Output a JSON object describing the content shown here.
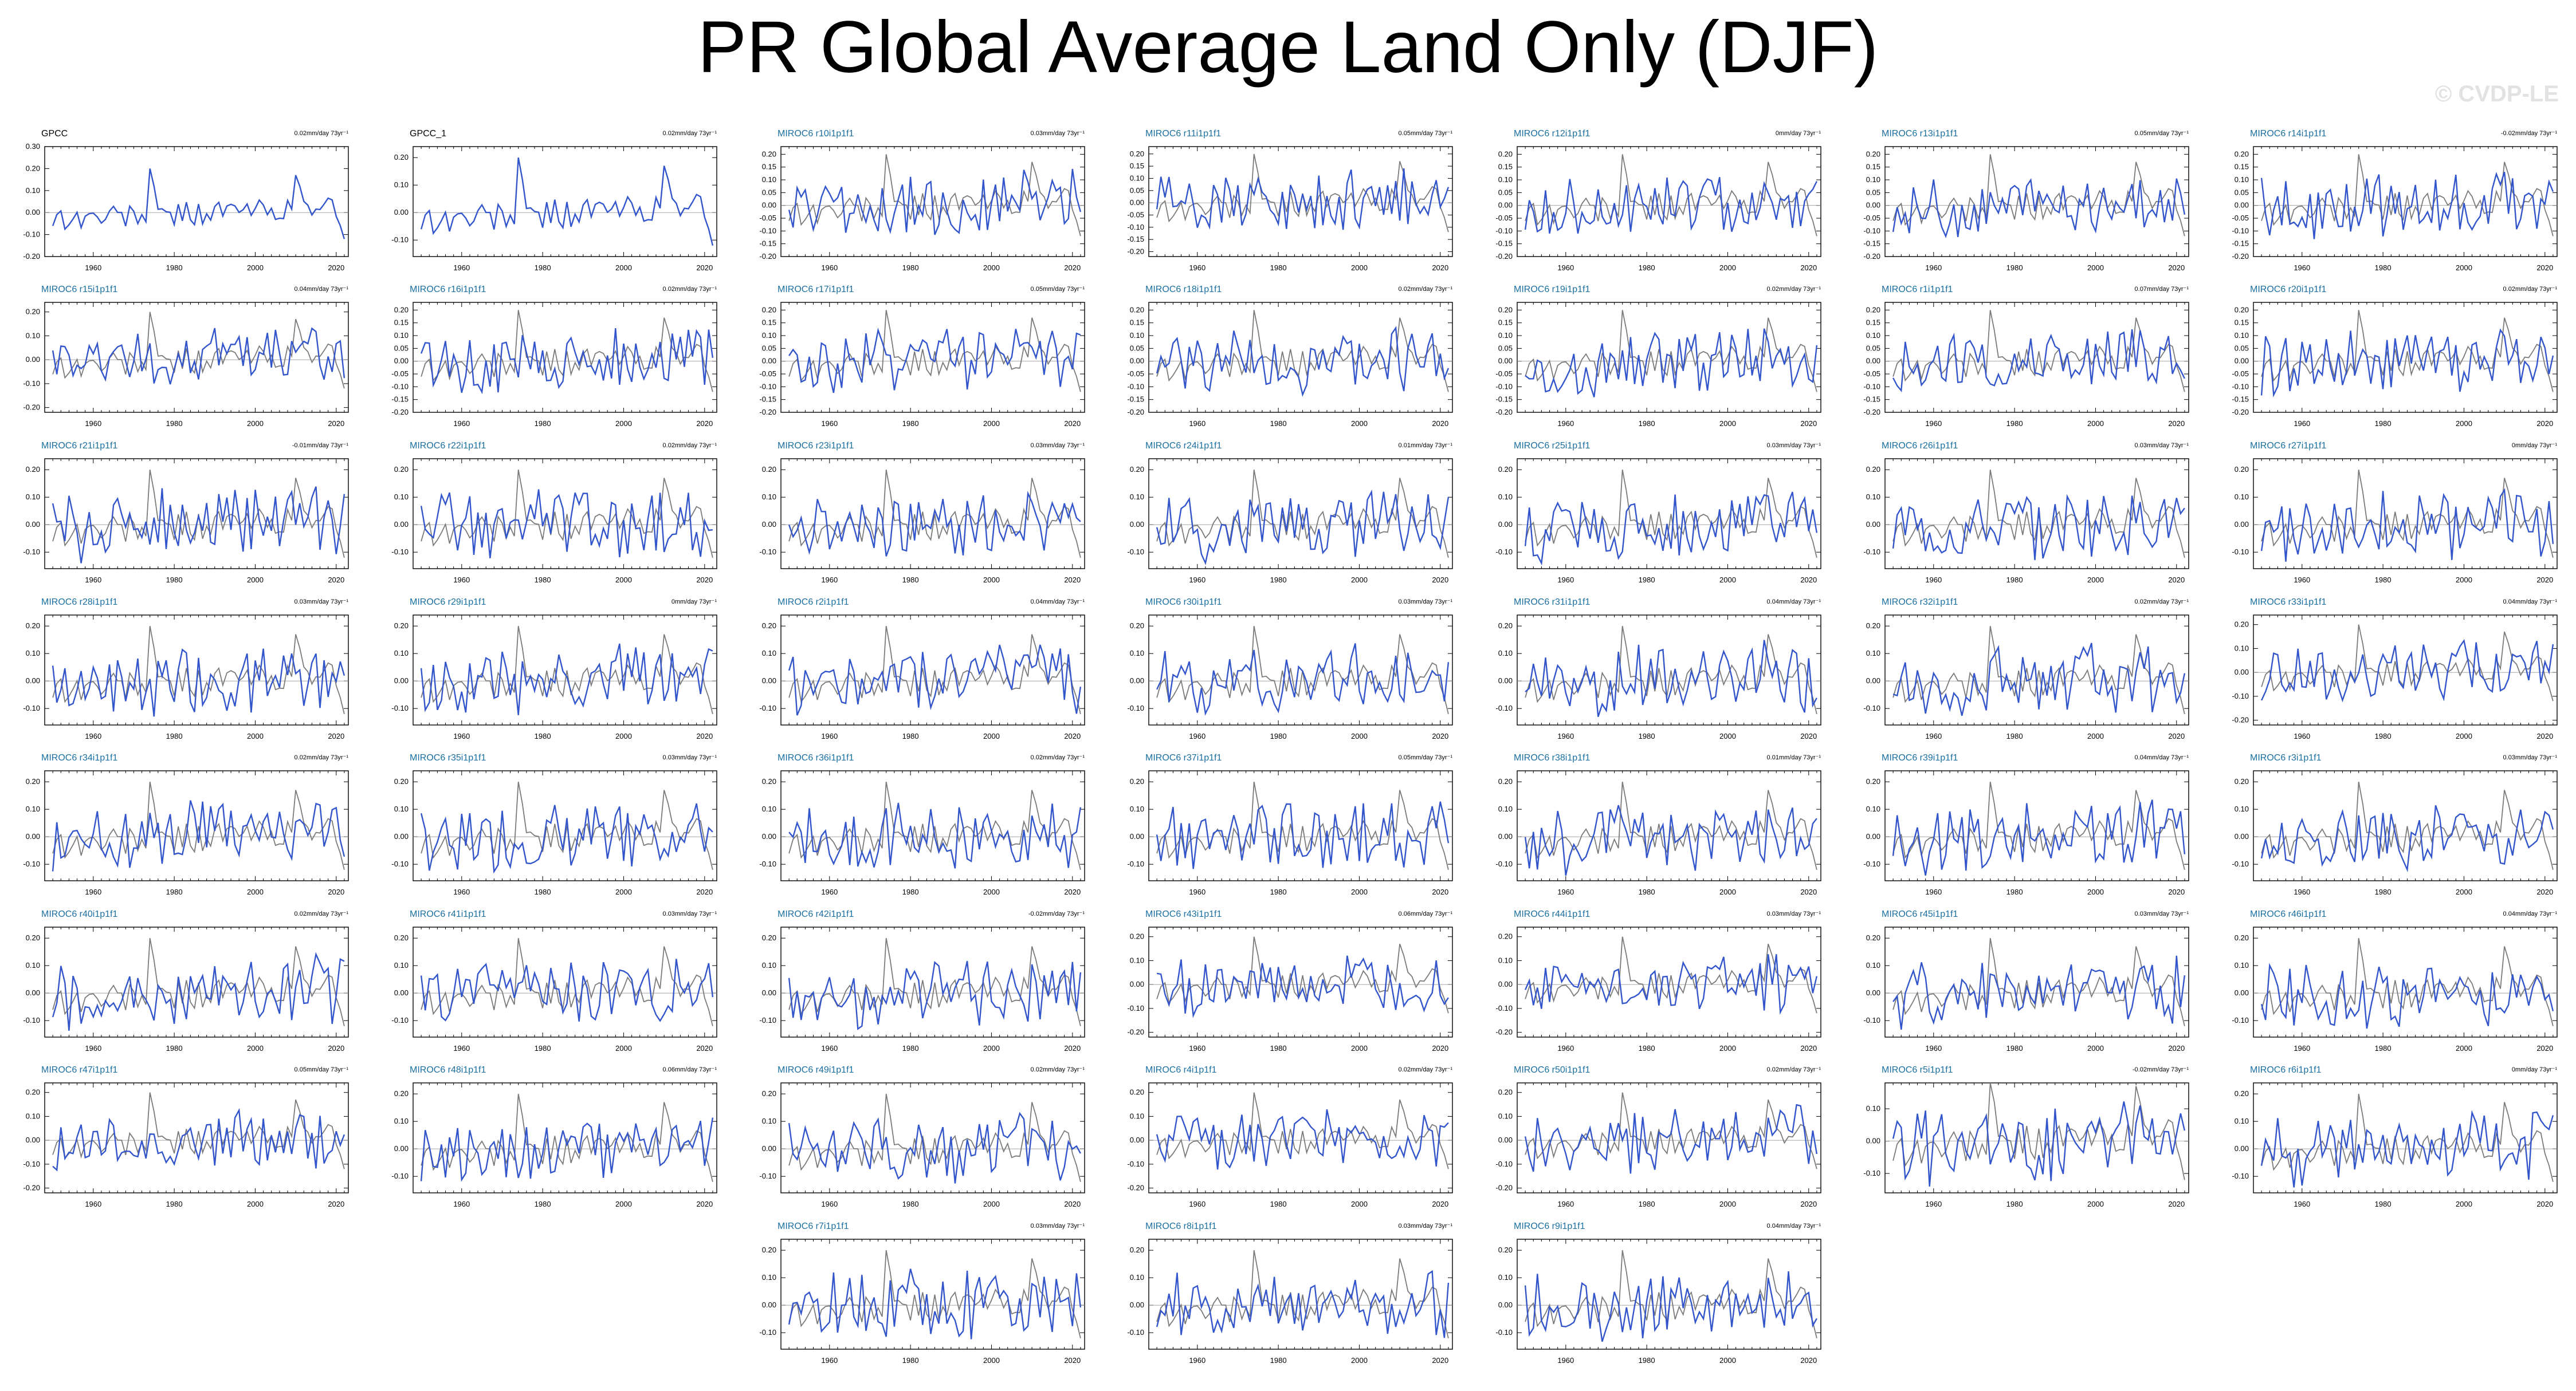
{
  "title": "PR Global Average Land Only (DJF)",
  "watermark": "© CVDP-LE",
  "colors": {
    "model": "#3355cc",
    "obs": "#7a7a7a",
    "obs_label": "#000000",
    "model_label": "#1a6fa0"
  },
  "chart_data": {
    "type": "line",
    "xlim": [
      1948,
      2023
    ],
    "xticks": [
      "1960",
      "1980",
      "2000",
      "2020"
    ],
    "obs_name": "GPCC",
    "panels": [
      {
        "label": "GPCC",
        "trend": "0.02mm/day 73yr⁻¹",
        "yticks": [
          "0.30",
          "0.20",
          "0.10",
          "0.00",
          "-0.10",
          "-0.20"
        ],
        "ylim": [
          -0.2,
          0.3
        ],
        "obs": true,
        "seed": 1
      },
      {
        "label": "GPCC_1",
        "trend": "0.02mm/day 73yr⁻¹",
        "yticks": [
          "0.20",
          "0.10",
          "0.00",
          "-0.10"
        ],
        "ylim": [
          -0.16,
          0.24
        ],
        "obs": true,
        "seed": 2
      },
      {
        "label": "MIROC6 r10i1p1f1",
        "trend": "0.03mm/day 73yr⁻¹",
        "yticks": [
          "0.20",
          "0.15",
          "0.10",
          "0.05",
          "0.00",
          "-0.05",
          "-0.10",
          "-0.15",
          "-0.20"
        ],
        "ylim": [
          -0.2,
          0.23
        ],
        "seed": 3
      },
      {
        "label": "MIROC6 r11i1p1f1",
        "trend": "0.05mm/day 73yr⁻¹",
        "yticks": [
          "0.20",
          "0.15",
          "0.10",
          "0.05",
          "0.00",
          "-0.05",
          "-0.10",
          "-0.15",
          "-0.20"
        ],
        "ylim": [
          -0.22,
          0.23
        ],
        "seed": 4
      },
      {
        "label": "MIROC6 r12i1p1f1",
        "trend": "0mm/day 73yr⁻¹",
        "yticks": [
          "0.20",
          "0.15",
          "0.10",
          "0.05",
          "0.00",
          "-0.05",
          "-0.10",
          "-0.15",
          "-0.20"
        ],
        "ylim": [
          -0.2,
          0.23
        ],
        "seed": 5
      },
      {
        "label": "MIROC6 r13i1p1f1",
        "trend": "0.05mm/day 73yr⁻¹",
        "yticks": [
          "0.20",
          "0.15",
          "0.10",
          "0.05",
          "0.00",
          "-0.05",
          "-0.10",
          "-0.15",
          "-0.20"
        ],
        "ylim": [
          -0.2,
          0.23
        ],
        "seed": 6
      },
      {
        "label": "MIROC6 r14i1p1f1",
        "trend": "-0.02mm/day 73yr⁻¹",
        "yticks": [
          "0.20",
          "0.15",
          "0.10",
          "0.05",
          "0.00",
          "-0.05",
          "-0.10",
          "-0.15",
          "-0.20"
        ],
        "ylim": [
          -0.2,
          0.23
        ],
        "seed": 7
      },
      {
        "label": "MIROC6 r15i1p1f1",
        "trend": "0.04mm/day 73yr⁻¹",
        "yticks": [
          "0.20",
          "0.10",
          "0.00",
          "-0.10",
          "-0.20"
        ],
        "ylim": [
          -0.22,
          0.24
        ],
        "seed": 8
      },
      {
        "label": "MIROC6 r16i1p1f1",
        "trend": "0.02mm/day 73yr⁻¹",
        "yticks": [
          "0.20",
          "0.15",
          "0.10",
          "0.05",
          "0.00",
          "-0.05",
          "-0.10",
          "-0.15",
          "-0.20"
        ],
        "ylim": [
          -0.2,
          0.23
        ],
        "seed": 9
      },
      {
        "label": "MIROC6 r17i1p1f1",
        "trend": "0.05mm/day 73yr⁻¹",
        "yticks": [
          "0.20",
          "0.15",
          "0.10",
          "0.05",
          "0.00",
          "-0.05",
          "-0.10",
          "-0.15",
          "-0.20"
        ],
        "ylim": [
          -0.2,
          0.23
        ],
        "seed": 10
      },
      {
        "label": "MIROC6 r18i1p1f1",
        "trend": "0.02mm/day 73yr⁻¹",
        "yticks": [
          "0.20",
          "0.15",
          "0.10",
          "0.05",
          "0.00",
          "-0.05",
          "-0.10",
          "-0.15",
          "-0.20"
        ],
        "ylim": [
          -0.2,
          0.23
        ],
        "seed": 11
      },
      {
        "label": "MIROC6 r19i1p1f1",
        "trend": "0.02mm/day 73yr⁻¹",
        "yticks": [
          "0.20",
          "0.15",
          "0.10",
          "0.05",
          "0.00",
          "-0.05",
          "-0.10",
          "-0.15",
          "-0.20"
        ],
        "ylim": [
          -0.2,
          0.23
        ],
        "seed": 12
      },
      {
        "label": "MIROC6 r1i1p1f1",
        "trend": "0.07mm/day 73yr⁻¹",
        "yticks": [
          "0.20",
          "0.15",
          "0.10",
          "0.05",
          "0.00",
          "-0.05",
          "-0.10",
          "-0.15",
          "-0.20"
        ],
        "ylim": [
          -0.2,
          0.23
        ],
        "seed": 13
      },
      {
        "label": "MIROC6 r20i1p1f1",
        "trend": "0.02mm/day 73yr⁻¹",
        "yticks": [
          "0.20",
          "0.15",
          "0.10",
          "0.05",
          "0.00",
          "-0.05",
          "-0.10",
          "-0.15",
          "-0.20"
        ],
        "ylim": [
          -0.2,
          0.23
        ],
        "seed": 14
      },
      {
        "label": "MIROC6 r21i1p1f1",
        "trend": "-0.01mm/day 73yr⁻¹",
        "yticks": [
          "0.20",
          "0.10",
          "0.00",
          "-0.10"
        ],
        "ylim": [
          -0.16,
          0.24
        ],
        "seed": 15
      },
      {
        "label": "MIROC6 r22i1p1f1",
        "trend": "0.02mm/day 73yr⁻¹",
        "yticks": [
          "0.20",
          "0.10",
          "0.00",
          "-0.10"
        ],
        "ylim": [
          -0.16,
          0.24
        ],
        "seed": 16
      },
      {
        "label": "MIROC6 r23i1p1f1",
        "trend": "0.03mm/day 73yr⁻¹",
        "yticks": [
          "0.20",
          "0.10",
          "0.00",
          "-0.10"
        ],
        "ylim": [
          -0.16,
          0.24
        ],
        "seed": 17
      },
      {
        "label": "MIROC6 r24i1p1f1",
        "trend": "0.01mm/day 73yr⁻¹",
        "yticks": [
          "0.20",
          "0.10",
          "0.00",
          "-0.10"
        ],
        "ylim": [
          -0.16,
          0.24
        ],
        "seed": 18
      },
      {
        "label": "MIROC6 r25i1p1f1",
        "trend": "0.03mm/day 73yr⁻¹",
        "yticks": [
          "0.20",
          "0.10",
          "0.00",
          "-0.10"
        ],
        "ylim": [
          -0.16,
          0.24
        ],
        "seed": 19
      },
      {
        "label": "MIROC6 r26i1p1f1",
        "trend": "0.03mm/day 73yr⁻¹",
        "yticks": [
          "0.20",
          "0.10",
          "0.00",
          "-0.10"
        ],
        "ylim": [
          -0.16,
          0.24
        ],
        "seed": 20
      },
      {
        "label": "MIROC6 r27i1p1f1",
        "trend": "0mm/day 73yr⁻¹",
        "yticks": [
          "0.20",
          "0.10",
          "0.00",
          "-0.10"
        ],
        "ylim": [
          -0.16,
          0.24
        ],
        "seed": 21
      },
      {
        "label": "MIROC6 r28i1p1f1",
        "trend": "0.03mm/day 73yr⁻¹",
        "yticks": [
          "0.20",
          "0.10",
          "0.00",
          "-0.10"
        ],
        "ylim": [
          -0.16,
          0.24
        ],
        "seed": 22
      },
      {
        "label": "MIROC6 r29i1p1f1",
        "trend": "0mm/day 73yr⁻¹",
        "yticks": [
          "0.20",
          "0.10",
          "0.00",
          "-0.10"
        ],
        "ylim": [
          -0.16,
          0.24
        ],
        "seed": 23
      },
      {
        "label": "MIROC6 r2i1p1f1",
        "trend": "0.04mm/day 73yr⁻¹",
        "yticks": [
          "0.20",
          "0.10",
          "0.00",
          "-0.10"
        ],
        "ylim": [
          -0.16,
          0.24
        ],
        "seed": 24
      },
      {
        "label": "MIROC6 r30i1p1f1",
        "trend": "0.03mm/day 73yr⁻¹",
        "yticks": [
          "0.20",
          "0.10",
          "0.00",
          "-0.10"
        ],
        "ylim": [
          -0.16,
          0.24
        ],
        "seed": 25
      },
      {
        "label": "MIROC6 r31i1p1f1",
        "trend": "0.04mm/day 73yr⁻¹",
        "yticks": [
          "0.20",
          "0.10",
          "0.00",
          "-0.10"
        ],
        "ylim": [
          -0.16,
          0.24
        ],
        "seed": 26
      },
      {
        "label": "MIROC6 r32i1p1f1",
        "trend": "0.02mm/day 73yr⁻¹",
        "yticks": [
          "0.20",
          "0.10",
          "0.00",
          "-0.10"
        ],
        "ylim": [
          -0.16,
          0.24
        ],
        "seed": 27
      },
      {
        "label": "MIROC6 r33i1p1f1",
        "trend": "0.04mm/day 73yr⁻¹",
        "yticks": [
          "0.20",
          "0.10",
          "0.00",
          "-0.10",
          "-0.20"
        ],
        "ylim": [
          -0.22,
          0.24
        ],
        "seed": 28
      },
      {
        "label": "MIROC6 r34i1p1f1",
        "trend": "0.02mm/day 73yr⁻¹",
        "yticks": [
          "0.20",
          "0.10",
          "0.00",
          "-0.10"
        ],
        "ylim": [
          -0.16,
          0.24
        ],
        "seed": 29
      },
      {
        "label": "MIROC6 r35i1p1f1",
        "trend": "0.03mm/day 73yr⁻¹",
        "yticks": [
          "0.20",
          "0.10",
          "0.00",
          "-0.10"
        ],
        "ylim": [
          -0.16,
          0.24
        ],
        "seed": 30
      },
      {
        "label": "MIROC6 r36i1p1f1",
        "trend": "0.02mm/day 73yr⁻¹",
        "yticks": [
          "0.20",
          "0.10",
          "0.00",
          "-0.10"
        ],
        "ylim": [
          -0.16,
          0.24
        ],
        "seed": 31
      },
      {
        "label": "MIROC6 r37i1p1f1",
        "trend": "0.05mm/day 73yr⁻¹",
        "yticks": [
          "0.20",
          "0.10",
          "0.00",
          "-0.10"
        ],
        "ylim": [
          -0.16,
          0.24
        ],
        "seed": 32
      },
      {
        "label": "MIROC6 r38i1p1f1",
        "trend": "0.01mm/day 73yr⁻¹",
        "yticks": [
          "0.20",
          "0.10",
          "0.00",
          "-0.10"
        ],
        "ylim": [
          -0.16,
          0.24
        ],
        "seed": 33
      },
      {
        "label": "MIROC6 r39i1p1f1",
        "trend": "0.04mm/day 73yr⁻¹",
        "yticks": [
          "0.20",
          "0.10",
          "0.00",
          "-0.10"
        ],
        "ylim": [
          -0.16,
          0.24
        ],
        "seed": 34
      },
      {
        "label": "MIROC6 r3i1p1f1",
        "trend": "0.03mm/day 73yr⁻¹",
        "yticks": [
          "0.20",
          "0.10",
          "0.00",
          "-0.10"
        ],
        "ylim": [
          -0.16,
          0.24
        ],
        "seed": 35
      },
      {
        "label": "MIROC6 r40i1p1f1",
        "trend": "0.02mm/day 73yr⁻¹",
        "yticks": [
          "0.20",
          "0.10",
          "0.00",
          "-0.10"
        ],
        "ylim": [
          -0.16,
          0.24
        ],
        "seed": 36
      },
      {
        "label": "MIROC6 r41i1p1f1",
        "trend": "0.03mm/day 73yr⁻¹",
        "yticks": [
          "0.20",
          "0.10",
          "0.00",
          "-0.10"
        ],
        "ylim": [
          -0.16,
          0.24
        ],
        "seed": 37
      },
      {
        "label": "MIROC6 r42i1p1f1",
        "trend": "-0.02mm/day 73yr⁻¹",
        "yticks": [
          "0.20",
          "0.10",
          "0.00",
          "-0.10"
        ],
        "ylim": [
          -0.16,
          0.24
        ],
        "seed": 38
      },
      {
        "label": "MIROC6 r43i1p1f1",
        "trend": "0.06mm/day 73yr⁻¹",
        "yticks": [
          "0.20",
          "0.10",
          "0.00",
          "-0.10",
          "-0.20"
        ],
        "ylim": [
          -0.22,
          0.24
        ],
        "seed": 39
      },
      {
        "label": "MIROC6 r44i1p1f1",
        "trend": "0.03mm/day 73yr⁻¹",
        "yticks": [
          "0.20",
          "0.10",
          "0.00",
          "-0.10",
          "-0.20"
        ],
        "ylim": [
          -0.22,
          0.24
        ],
        "seed": 40
      },
      {
        "label": "MIROC6 r45i1p1f1",
        "trend": "0.03mm/day 73yr⁻¹",
        "yticks": [
          "0.20",
          "0.10",
          "0.00",
          "-0.10"
        ],
        "ylim": [
          -0.16,
          0.24
        ],
        "seed": 41
      },
      {
        "label": "MIROC6 r46i1p1f1",
        "trend": "0.04mm/day 73yr⁻¹",
        "yticks": [
          "0.20",
          "0.10",
          "0.00",
          "-0.10"
        ],
        "ylim": [
          -0.16,
          0.24
        ],
        "seed": 42
      },
      {
        "label": "MIROC6 r47i1p1f1",
        "trend": "0.05mm/day 73yr⁻¹",
        "yticks": [
          "0.20",
          "0.10",
          "0.00",
          "-0.10",
          "-0.20"
        ],
        "ylim": [
          -0.22,
          0.24
        ],
        "seed": 43
      },
      {
        "label": "MIROC6 r48i1p1f1",
        "trend": "0.06mm/day 73yr⁻¹",
        "yticks": [
          "0.20",
          "0.10",
          "0.00",
          "-0.10"
        ],
        "ylim": [
          -0.16,
          0.24
        ],
        "seed": 44
      },
      {
        "label": "MIROC6 r49i1p1f1",
        "trend": "0.02mm/day 73yr⁻¹",
        "yticks": [
          "0.20",
          "0.10",
          "0.00",
          "-0.10"
        ],
        "ylim": [
          -0.16,
          0.24
        ],
        "seed": 45
      },
      {
        "label": "MIROC6 r4i1p1f1",
        "trend": "0.02mm/day 73yr⁻¹",
        "yticks": [
          "0.20",
          "0.10",
          "0.00",
          "-0.10",
          "-0.20"
        ],
        "ylim": [
          -0.22,
          0.24
        ],
        "seed": 46
      },
      {
        "label": "MIROC6 r50i1p1f1",
        "trend": "0.02mm/day 73yr⁻¹",
        "yticks": [
          "0.20",
          "0.10",
          "0.00",
          "-0.10",
          "-0.20"
        ],
        "ylim": [
          -0.22,
          0.24
        ],
        "seed": 47
      },
      {
        "label": "MIROC6 r5i1p1f1",
        "trend": "-0.02mm/day 73yr⁻¹",
        "yticks": [
          "0.10",
          "0.00",
          "-0.10"
        ],
        "ylim": [
          -0.16,
          0.18
        ],
        "seed": 48
      },
      {
        "label": "MIROC6 r6i1p1f1",
        "trend": "0mm/day 73yr⁻¹",
        "yticks": [
          "0.20",
          "0.10",
          "0.00",
          "-0.10"
        ],
        "ylim": [
          -0.16,
          0.24
        ],
        "seed": 49
      },
      {
        "label": "MIROC6 r7i1p1f1",
        "trend": "0.03mm/day 73yr⁻¹",
        "yticks": [
          "0.20",
          "0.10",
          "0.00",
          "-0.10"
        ],
        "ylim": [
          -0.16,
          0.24
        ],
        "seed": 50
      },
      {
        "label": "MIROC6 r8i1p1f1",
        "trend": "0.03mm/day 73yr⁻¹",
        "yticks": [
          "0.20",
          "0.10",
          "0.00",
          "-0.10"
        ],
        "ylim": [
          -0.16,
          0.24
        ],
        "seed": 51
      },
      {
        "label": "MIROC6 r9i1p1f1",
        "trend": "0.04mm/day 73yr⁻¹",
        "yticks": [
          "0.20",
          "0.10",
          "0.00",
          "-0.10"
        ],
        "ylim": [
          -0.16,
          0.24
        ],
        "seed": 52
      }
    ]
  }
}
